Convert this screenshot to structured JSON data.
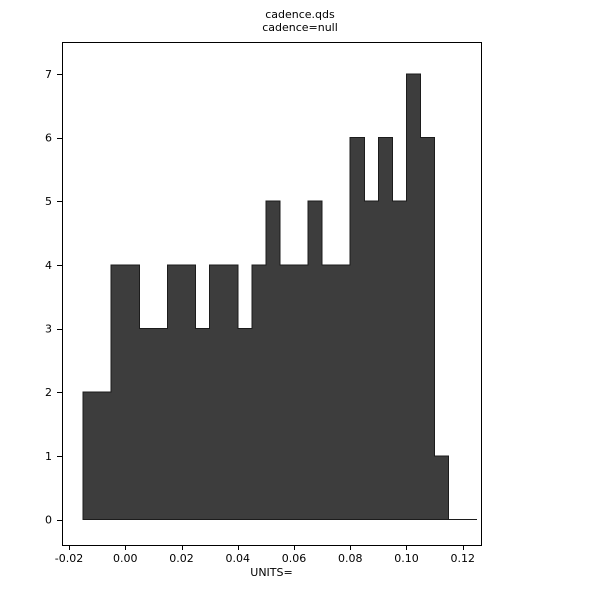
{
  "chart_data": {
    "type": "bar",
    "subtype": "histogram",
    "title": "cadence.qds",
    "subtitle": "cadence=null",
    "xlabel": "UNITS=",
    "ylabel": "",
    "bin_start": -0.015,
    "bin_width": 0.005,
    "counts": [
      2,
      2,
      4,
      4,
      3,
      3,
      4,
      4,
      3,
      4,
      4,
      3,
      4,
      5,
      4,
      4,
      5,
      4,
      4,
      6,
      5,
      6,
      5,
      7,
      6,
      1,
      0,
      0
    ],
    "xlim": [
      -0.0225,
      0.1265
    ],
    "ylim": [
      -0.4,
      7.5
    ],
    "xtick_values": [
      -0.02,
      0.0,
      0.02,
      0.04,
      0.06,
      0.08,
      0.1,
      0.12
    ],
    "xtick_labels": [
      "-0.02",
      "0.00",
      "0.02",
      "0.04",
      "0.06",
      "0.08",
      "0.10",
      "0.12"
    ],
    "ytick_values": [
      0,
      1,
      2,
      3,
      4,
      5,
      6,
      7
    ],
    "ytick_labels": [
      "0",
      "1",
      "2",
      "3",
      "4",
      "5",
      "6",
      "7"
    ],
    "grid": false,
    "legend": null,
    "bar_color": "#3d3d3d",
    "bar_edge_color": "#1c1c1c",
    "frame_color": "#000000",
    "text_color": "#000000"
  }
}
